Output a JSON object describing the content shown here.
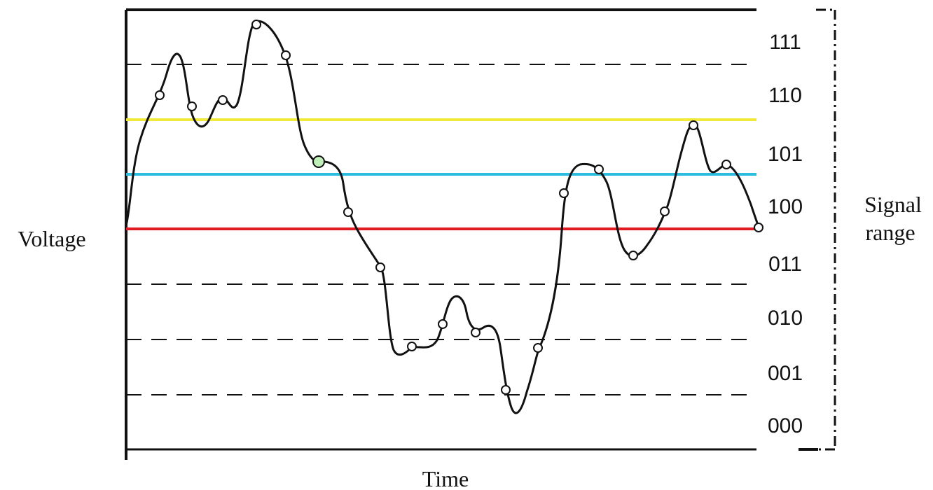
{
  "labels": {
    "y_axis": "Voltage",
    "x_axis": "Time",
    "right_label_line1": "Signal",
    "right_label_line2": "range"
  },
  "levels": [
    "111",
    "110",
    "101",
    "100",
    "011",
    "010",
    "001",
    "000"
  ],
  "colors": {
    "signal": "#111111",
    "grid": "#111111",
    "yellow_line": "#f2ea3a",
    "cyan_line": "#2bbde0",
    "red_line": "#e01b24",
    "highlight_point": "#bff0b8"
  },
  "chart_data": {
    "type": "line",
    "x_label": "Time",
    "y_label": "Voltage",
    "y_levels": [
      "000",
      "001",
      "010",
      "011",
      "100",
      "101",
      "110",
      "111"
    ],
    "threshold_lines": [
      {
        "color": "red",
        "level": 3.5
      },
      {
        "color": "cyan",
        "level": 4.5
      },
      {
        "color": "yellow",
        "level": 5.5
      }
    ],
    "samples": [
      {
        "t": 1,
        "v": 5.8
      },
      {
        "t": 2,
        "v": 5.6
      },
      {
        "t": 3,
        "v": 5.7
      },
      {
        "t": 4,
        "v": 7.4
      },
      {
        "t": 5,
        "v": 6.8
      },
      {
        "t": 6,
        "v": 4.85
      },
      {
        "t": 7,
        "v": 3.85
      },
      {
        "t": 8,
        "v": 2.75
      },
      {
        "t": 9,
        "v": 1.55
      },
      {
        "t": 10,
        "v": 1.95
      },
      {
        "t": 11,
        "v": 1.75
      },
      {
        "t": 12,
        "v": 0.95
      },
      {
        "t": 13,
        "v": 1.55
      },
      {
        "t": 14,
        "v": 3.9
      },
      {
        "t": 15,
        "v": 4.6
      },
      {
        "t": 16,
        "v": 3.25
      },
      {
        "t": 17,
        "v": 3.7
      },
      {
        "t": 18,
        "v": 5.45
      },
      {
        "t": 19,
        "v": 4.7
      },
      {
        "t": 20,
        "v": 3.5
      }
    ],
    "highlighted_sample": 6
  }
}
